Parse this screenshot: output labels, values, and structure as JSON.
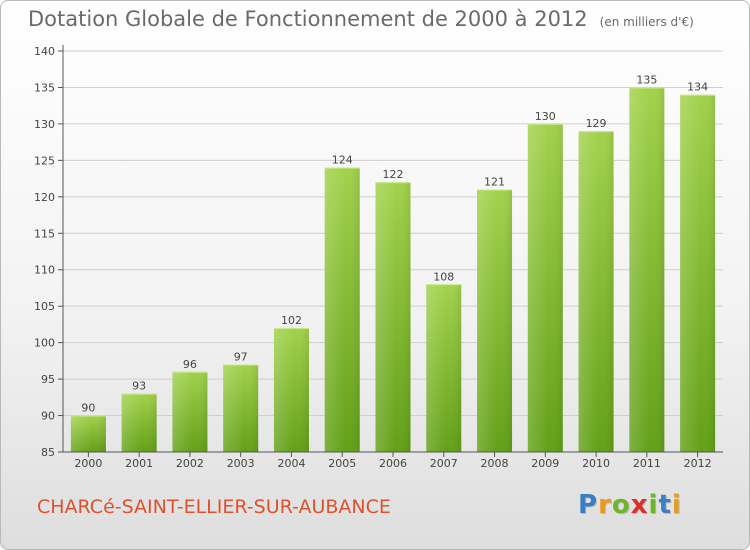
{
  "title": "Dotation Globale de Fonctionnement de 2000 à 2012",
  "subtitle": "(en milliers d'€)",
  "commune": "CHARCé-SAINT-ELLIER-SUR-AUBANCE",
  "logo": {
    "letters": [
      "P",
      "r",
      "o",
      "x",
      "i",
      "t",
      "i"
    ],
    "colors": [
      "#3a7fc4",
      "#e89c1c",
      "#6fb52c",
      "#d6332b",
      "#6fb52c",
      "#3a7fc4",
      "#e89c1c"
    ]
  },
  "colors": {
    "bar_top": "#a2d24c",
    "bar_bottom": "#62a017",
    "axis": "#555555",
    "grid": "#cfcfcf"
  },
  "chart_data": {
    "type": "bar",
    "categories": [
      "2000",
      "2001",
      "2002",
      "2003",
      "2004",
      "2005",
      "2006",
      "2007",
      "2008",
      "2009",
      "2010",
      "2011",
      "2012"
    ],
    "values": [
      90,
      93,
      96,
      97,
      102,
      124,
      122,
      108,
      121,
      130,
      129,
      135,
      134
    ],
    "data_labels": [
      "90",
      "93",
      "96",
      "97",
      "102",
      "124",
      "122",
      "108",
      "121",
      "130",
      "129",
      "135",
      "134"
    ],
    "ylim": [
      85,
      140
    ],
    "yticks": [
      85,
      90,
      95,
      100,
      105,
      110,
      115,
      120,
      125,
      130,
      135,
      140
    ],
    "ytick_labels": [
      "85",
      "90",
      "95",
      "100",
      "105",
      "110",
      "115",
      "120",
      "125",
      "130",
      "135",
      "140"
    ],
    "grid": true,
    "xlabel": "",
    "ylabel": ""
  }
}
